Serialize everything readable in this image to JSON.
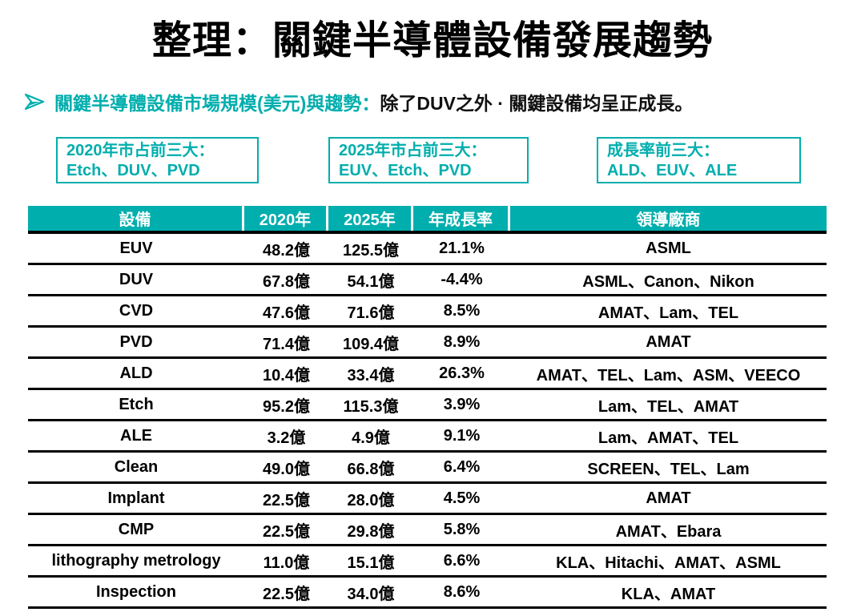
{
  "title": "整理：關鍵半導體設備發展趨勢",
  "bullet": {
    "highlight": "關鍵半導體設備市場規模(美元)與趨勢：",
    "rest": "除了DUV之外 · 關鍵設備均呈正成長。"
  },
  "callouts": [
    {
      "line1": "2020年市占前三大：",
      "line2": "Etch、DUV、PVD"
    },
    {
      "line1": "2025年市占前三大：",
      "line2": "EUV、Etch、PVD"
    },
    {
      "line1": "成長率前三大：",
      "line2": "ALD、EUV、ALE"
    }
  ],
  "colors": {
    "teal": "#00AEAD",
    "red": "#ED1C24",
    "header_text": "#FFFFFF"
  },
  "table": {
    "headers": [
      "設備",
      "2020年",
      "2025年",
      "年成長率",
      "領導廠商"
    ],
    "rows": [
      {
        "cells": [
          "EUV",
          "48.2億",
          "125.5億",
          "21.1%",
          "ASML"
        ],
        "red": [
          2,
          3
        ]
      },
      {
        "cells": [
          "DUV",
          "67.8億",
          "54.1億",
          "-4.4%",
          "ASML、Canon、Nikon"
        ],
        "red": [
          1
        ]
      },
      {
        "cells": [
          "CVD",
          "47.6億",
          "71.6億",
          "8.5%",
          "AMAT、Lam、TEL"
        ],
        "red": []
      },
      {
        "cells": [
          "PVD",
          "71.4億",
          "109.4億",
          "8.9%",
          "AMAT"
        ],
        "red": [
          1,
          2
        ]
      },
      {
        "cells": [
          "ALD",
          "10.4億",
          "33.4億",
          "26.3%",
          "AMAT、TEL、Lam、ASM、VEECO"
        ],
        "red": [
          3
        ]
      },
      {
        "cells": [
          "Etch",
          "95.2億",
          "115.3億",
          "3.9%",
          "Lam、TEL、AMAT"
        ],
        "red": [
          1,
          2
        ]
      },
      {
        "cells": [
          "ALE",
          "3.2億",
          "4.9億",
          "9.1%",
          "Lam、AMAT、TEL"
        ],
        "red": [
          3
        ]
      },
      {
        "cells": [
          "Clean",
          "49.0億",
          "66.8億",
          "6.4%",
          "SCREEN、TEL、Lam"
        ],
        "red": []
      },
      {
        "cells": [
          "Implant",
          "22.5億",
          "28.0億",
          "4.5%",
          "AMAT"
        ],
        "red": []
      },
      {
        "cells": [
          "CMP",
          "22.5億",
          "29.8億",
          "5.8%",
          "AMAT、Ebara"
        ],
        "red": []
      },
      {
        "cells": [
          "lithography metrology",
          "11.0億",
          "15.1億",
          "6.6%",
          "KLA、Hitachi、AMAT、ASML"
        ],
        "red": []
      },
      {
        "cells": [
          "Inspection",
          "22.5億",
          "34.0億",
          "8.6%",
          "KLA、AMAT"
        ],
        "red": []
      }
    ]
  }
}
